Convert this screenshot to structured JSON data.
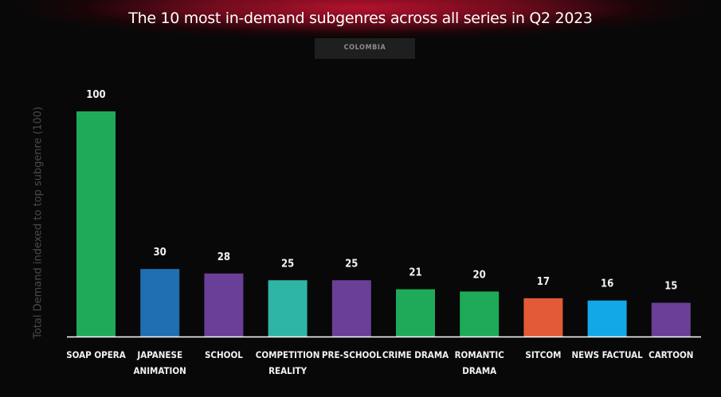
{
  "title": "The 10 most in-demand subgenres across all series in Q2 2023",
  "country": "COLOMBIA",
  "chart_data": {
    "type": "bar",
    "title": "The 10 most in-demand subgenres across all series in Q2 2023",
    "subtitle": "COLOMBIA",
    "xlabel": "",
    "ylabel": "Total Demand indexed to top subgenre (100)",
    "ylim": [
      0,
      100
    ],
    "grid": false,
    "categories": [
      [
        "SOAP OPERA"
      ],
      [
        "JAPANESE",
        "ANIMATION"
      ],
      [
        "SCHOOL"
      ],
      [
        "COMPETITION",
        "REALITY"
      ],
      [
        "PRE-SCHOOL"
      ],
      [
        "CRIME DRAMA"
      ],
      [
        "ROMANTIC",
        "DRAMA"
      ],
      [
        "SITCOM"
      ],
      [
        "NEWS FACTUAL"
      ],
      [
        "CARTOON"
      ]
    ],
    "values": [
      100,
      30,
      28,
      25,
      25,
      21,
      20,
      17,
      16,
      15
    ],
    "colors": [
      "#1faa59",
      "#1f6fb2",
      "#6a3f98",
      "#2fb5a6",
      "#6a3f98",
      "#1faa59",
      "#1faa59",
      "#e25a36",
      "#12a8e8",
      "#6a3f98"
    ],
    "axis_color": "#ffffff"
  }
}
